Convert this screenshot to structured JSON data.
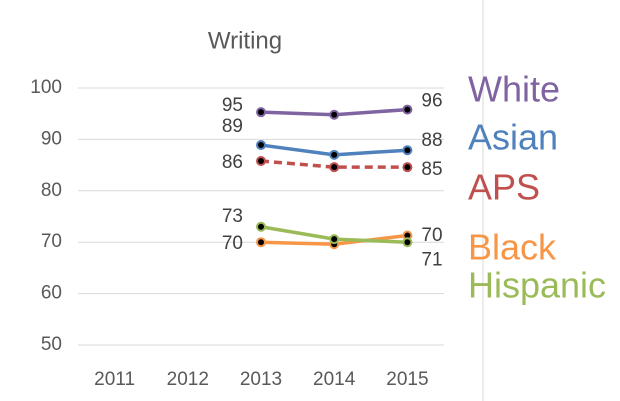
{
  "chart_data": {
    "type": "line",
    "title": "Writing",
    "categories": [
      "2011",
      "2012",
      "2013",
      "2014",
      "2015"
    ],
    "ylim": [
      50,
      100
    ],
    "yticks": [
      50,
      60,
      70,
      80,
      90,
      100
    ],
    "grid": true,
    "series": [
      {
        "name": "White",
        "color": "#8064a2",
        "values": [
          null,
          null,
          95.3,
          94.8,
          95.8
        ],
        "value_labels": [
          null,
          null,
          "95",
          null,
          "96"
        ]
      },
      {
        "name": "Asian",
        "color": "#4f81bd",
        "values": [
          null,
          null,
          88.9,
          87.0,
          87.9
        ],
        "value_labels": [
          null,
          null,
          "89",
          null,
          "88"
        ]
      },
      {
        "name": "APS",
        "color": "#c0504d",
        "dashed": true,
        "values": [
          null,
          null,
          85.8,
          84.6,
          84.6
        ],
        "value_labels": [
          null,
          null,
          "86",
          null,
          "85"
        ]
      },
      {
        "name": "Black",
        "color": "#f79646",
        "values": [
          null,
          null,
          70.0,
          69.6,
          71.3
        ],
        "value_labels": [
          null,
          null,
          "70",
          null,
          "71"
        ]
      },
      {
        "name": "Hispanic",
        "color": "#9bbb59",
        "values": [
          null,
          null,
          73.0,
          70.6,
          70.0
        ],
        "value_labels": [
          null,
          null,
          "73",
          null,
          "70"
        ]
      }
    ]
  }
}
